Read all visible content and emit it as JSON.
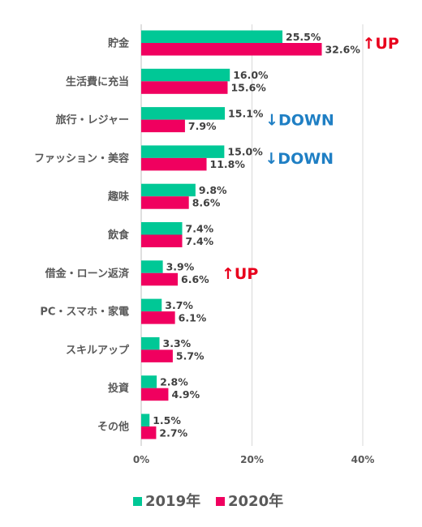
{
  "chart_data": {
    "type": "bar",
    "orientation": "horizontal",
    "title": "",
    "xlabel": "",
    "ylabel": "",
    "xlim": [
      0,
      40
    ],
    "x_ticks": [
      0,
      20,
      40
    ],
    "x_tick_labels": [
      "0%",
      "20%",
      "40%"
    ],
    "grid": true,
    "legend_position": "bottom",
    "categories": [
      "貯金",
      "生活費に充当",
      "旅行・レジャー",
      "ファッション・美容",
      "趣味",
      "飲食",
      "借金・ローン返済",
      "PC・スマホ・家電",
      "スキルアップ",
      "投資",
      "その他"
    ],
    "series": [
      {
        "name": "2019年",
        "color": "#00c896",
        "values": [
          25.5,
          16.0,
          15.1,
          15.0,
          9.8,
          7.4,
          3.9,
          3.7,
          3.3,
          2.8,
          1.5
        ],
        "labels": [
          "25.5%",
          "16.0%",
          "15.1%",
          "15.0%",
          "9.8%",
          "7.4%",
          "3.9%",
          "3.7%",
          "3.3%",
          "2.8%",
          "1.5%"
        ]
      },
      {
        "name": "2020年",
        "color": "#f0005f",
        "values": [
          32.6,
          15.6,
          7.9,
          11.8,
          8.6,
          7.4,
          6.6,
          6.1,
          5.7,
          4.9,
          2.7
        ],
        "labels": [
          "32.6%",
          "15.6%",
          "7.9%",
          "11.8%",
          "8.6%",
          "7.4%",
          "6.6%",
          "6.1%",
          "5.7%",
          "4.9%",
          "2.7%"
        ]
      }
    ],
    "annotations": [
      {
        "category_index": 0,
        "text": "↑UP",
        "color": "#e8001c"
      },
      {
        "category_index": 2,
        "text": "↓DOWN",
        "color": "#1f7fc4"
      },
      {
        "category_index": 3,
        "text": "↓DOWN",
        "color": "#1f7fc4"
      },
      {
        "category_index": 6,
        "text": "↑UP",
        "color": "#e8001c"
      }
    ]
  }
}
